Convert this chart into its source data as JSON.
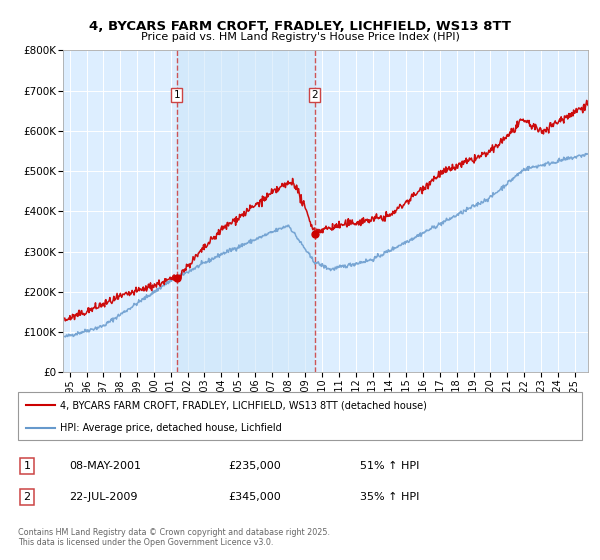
{
  "title_line1": "4, BYCARS FARM CROFT, FRADLEY, LICHFIELD, WS13 8TT",
  "title_line2": "Price paid vs. HM Land Registry's House Price Index (HPI)",
  "legend_label_red": "4, BYCARS FARM CROFT, FRADLEY, LICHFIELD, WS13 8TT (detached house)",
  "legend_label_blue": "HPI: Average price, detached house, Lichfield",
  "transaction1_date": "08-MAY-2001",
  "transaction1_price": "£235,000",
  "transaction1_hpi": "51% ↑ HPI",
  "transaction2_date": "22-JUL-2009",
  "transaction2_price": "£345,000",
  "transaction2_hpi": "35% ↑ HPI",
  "xmin": 1994.6,
  "xmax": 2025.8,
  "ymin": 0,
  "ymax": 800000,
  "yticks": [
    0,
    100000,
    200000,
    300000,
    400000,
    500000,
    600000,
    700000,
    800000
  ],
  "ytick_labels": [
    "£0",
    "£100K",
    "£200K",
    "£300K",
    "£400K",
    "£500K",
    "£600K",
    "£700K",
    "£800K"
  ],
  "vline1_x": 2001.36,
  "vline2_x": 2009.55,
  "background_color": "#ddeeff",
  "shade_color": "#cce0f5",
  "red_color": "#cc0000",
  "blue_color": "#6699cc",
  "vline_color": "#cc4444",
  "footer_text": "Contains HM Land Registry data © Crown copyright and database right 2025.\nThis data is licensed under the Open Government Licence v3.0.",
  "xtick_years": [
    1995,
    1996,
    1997,
    1998,
    1999,
    2000,
    2001,
    2002,
    2003,
    2004,
    2005,
    2006,
    2007,
    2008,
    2009,
    2010,
    2011,
    2012,
    2013,
    2014,
    2015,
    2016,
    2017,
    2018,
    2019,
    2020,
    2021,
    2022,
    2023,
    2024,
    2025
  ]
}
